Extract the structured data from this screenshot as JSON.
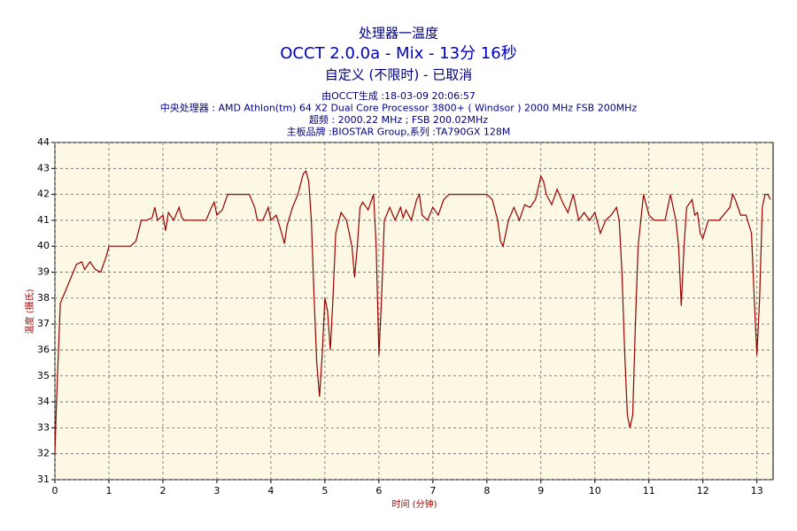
{
  "chart_data": {
    "type": "line",
    "title": "处理器一温度",
    "subtitle": "OCCT 2.0.0a - Mix - 13分 16秒",
    "subtitle2": "自定义 (不限时) - 已取消",
    "info": [
      "由OCCT生成 :18-03-09 20:06:57",
      "中央处理器 : AMD Athlon(tm) 64 X2 Dual Core Processor 3800+ ( Windsor ) 2000 MHz FSB 200MHz",
      "超频 : 2000.22 MHz ; FSB 200.02MHz",
      "主板品牌 :BIOSTAR Group,系列 :TA790GX 128M"
    ],
    "xlabel": "时间 (分钟)",
    "ylabel": "温度 (摄氏)",
    "xlim": [
      0,
      13.3
    ],
    "ylim": [
      31,
      44
    ],
    "xticks": [
      0,
      1,
      2,
      3,
      4,
      5,
      6,
      7,
      8,
      9,
      10,
      11,
      12,
      13
    ],
    "yticks": [
      31,
      32,
      33,
      34,
      35,
      36,
      37,
      38,
      39,
      40,
      41,
      42,
      43,
      44
    ],
    "grid": true,
    "color": "#990000",
    "x": [
      0,
      0.03,
      0.1,
      0.2,
      0.3,
      0.4,
      0.5,
      0.55,
      0.65,
      0.75,
      0.85,
      0.95,
      1.0,
      1.1,
      1.2,
      1.4,
      1.5,
      1.6,
      1.7,
      1.8,
      1.85,
      1.9,
      2.0,
      2.05,
      2.1,
      2.2,
      2.3,
      2.35,
      2.4,
      2.8,
      2.9,
      2.95,
      3.0,
      3.1,
      3.2,
      3.4,
      3.6,
      3.7,
      3.75,
      3.85,
      3.95,
      4.0,
      4.1,
      4.2,
      4.25,
      4.3,
      4.4,
      4.5,
      4.6,
      4.65,
      4.7,
      4.75,
      4.8,
      4.85,
      4.9,
      4.95,
      5.0,
      5.05,
      5.1,
      5.15,
      5.2,
      5.3,
      5.4,
      5.5,
      5.55,
      5.6,
      5.65,
      5.7,
      5.8,
      5.9,
      5.95,
      6.0,
      6.05,
      6.1,
      6.2,
      6.3,
      6.4,
      6.45,
      6.5,
      6.6,
      6.7,
      6.75,
      6.8,
      6.9,
      7.0,
      7.1,
      7.2,
      7.3,
      7.5,
      7.7,
      8.0,
      8.1,
      8.2,
      8.25,
      8.3,
      8.4,
      8.5,
      8.6,
      8.7,
      8.8,
      8.9,
      9.0,
      9.05,
      9.1,
      9.2,
      9.3,
      9.4,
      9.5,
      9.6,
      9.7,
      9.8,
      9.9,
      10.0,
      10.1,
      10.2,
      10.3,
      10.4,
      10.45,
      10.5,
      10.55,
      10.6,
      10.65,
      10.7,
      10.75,
      10.8,
      10.9,
      11.0,
      11.1,
      11.3,
      11.4,
      11.5,
      11.55,
      11.6,
      11.65,
      11.7,
      11.8,
      11.85,
      11.9,
      11.95,
      12.0,
      12.1,
      12.3,
      12.5,
      12.55,
      12.6,
      12.7,
      12.8,
      12.9,
      12.95,
      13.0,
      13.05,
      13.1,
      13.15,
      13.2,
      13.25
    ],
    "values": [
      32,
      34,
      37.8,
      38.3,
      38.8,
      39.3,
      39.4,
      39.1,
      39.4,
      39.1,
      39.0,
      39.6,
      40,
      40,
      40,
      40,
      40.2,
      41,
      41,
      41.1,
      41.5,
      41.0,
      41.2,
      40.6,
      41.3,
      41.0,
      41.5,
      41.1,
      41.0,
      41,
      41.5,
      41.7,
      41.2,
      41.4,
      42,
      42,
      42,
      41.5,
      41,
      41,
      41.5,
      41.0,
      41.2,
      40.5,
      40.1,
      40.8,
      41.5,
      42,
      42.8,
      42.9,
      42.5,
      41,
      38,
      35.5,
      34.2,
      35.8,
      38,
      37.5,
      36,
      38,
      40.5,
      41.3,
      41,
      40,
      38.8,
      40,
      41.5,
      41.7,
      41.4,
      42,
      40,
      35.8,
      38,
      41,
      41.5,
      41,
      41.5,
      41.1,
      41.4,
      41,
      41.8,
      42,
      41.2,
      41,
      41.5,
      41.2,
      41.8,
      42,
      42,
      42,
      42,
      41.8,
      41,
      40.2,
      40,
      41,
      41.5,
      41,
      41.6,
      41.5,
      41.8,
      42.7,
      42.5,
      42,
      41.6,
      42.2,
      41.7,
      41.3,
      42,
      41,
      41.3,
      41.0,
      41.3,
      40.5,
      41,
      41.2,
      41.5,
      41,
      39,
      36,
      33.5,
      33,
      33.5,
      37,
      40,
      42,
      41.2,
      41,
      41,
      42,
      41,
      40,
      37.7,
      40,
      41.5,
      41.8,
      41.2,
      41.3,
      40.5,
      40.3,
      41,
      41,
      41.5,
      42,
      41.8,
      41.2,
      41.2,
      40.5,
      38,
      35.8,
      38,
      41.5,
      42,
      42,
      41.8
    ]
  }
}
